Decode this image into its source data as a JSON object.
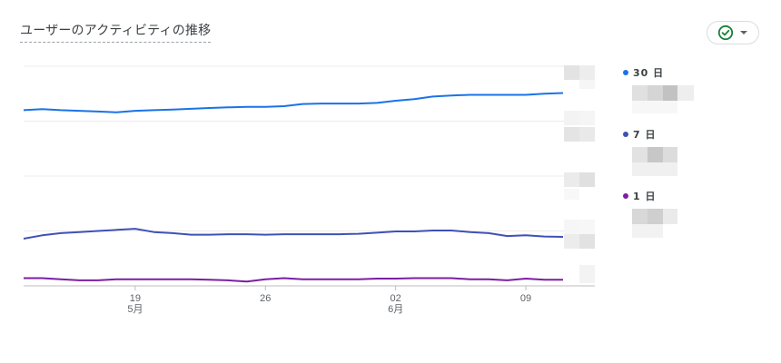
{
  "card": {
    "title": "ユーザーのアクティビティの推移"
  },
  "status_control": {
    "icon": "check-circle-icon",
    "dropdown_icon": "caret-down-icon",
    "accent": "#188038"
  },
  "chart_data": {
    "type": "line",
    "x": [
      "5/13",
      "5/14",
      "5/15",
      "5/16",
      "5/17",
      "5/18",
      "5/19",
      "5/20",
      "5/21",
      "5/22",
      "5/23",
      "5/24",
      "5/25",
      "5/26",
      "5/27",
      "5/28",
      "5/29",
      "5/30",
      "5/31",
      "6/1",
      "6/2",
      "6/3",
      "6/4",
      "6/5",
      "6/6",
      "6/7",
      "6/8",
      "6/9",
      "6/10",
      "6/11"
    ],
    "x_ticks": [
      {
        "day": "19",
        "month": "5月",
        "index": 6
      },
      {
        "day": "26",
        "month": "",
        "index": 13
      },
      {
        "day": "02",
        "month": "6月",
        "index": 20
      },
      {
        "day": "09",
        "month": "",
        "index": 27
      }
    ],
    "gridlines": 5,
    "series": [
      {
        "name": "30 日",
        "color": "#1a73e8",
        "values": [
          0.8,
          0.805,
          0.8,
          0.797,
          0.794,
          0.79,
          0.797,
          0.8,
          0.803,
          0.806,
          0.81,
          0.813,
          0.815,
          0.815,
          0.818,
          0.828,
          0.83,
          0.83,
          0.83,
          0.833,
          0.843,
          0.85,
          0.862,
          0.867,
          0.87,
          0.87,
          0.87,
          0.87,
          0.875,
          0.878
        ]
      },
      {
        "name": "7 日",
        "color": "#3f51b5",
        "values": [
          0.215,
          0.23,
          0.24,
          0.245,
          0.25,
          0.255,
          0.26,
          0.245,
          0.24,
          0.233,
          0.233,
          0.235,
          0.235,
          0.233,
          0.235,
          0.235,
          0.235,
          0.235,
          0.237,
          0.242,
          0.248,
          0.248,
          0.252,
          0.252,
          0.245,
          0.24,
          0.227,
          0.23,
          0.225,
          0.223
        ]
      },
      {
        "name": "1 日",
        "color": "#7b1fa2",
        "values": [
          0.035,
          0.035,
          0.03,
          0.025,
          0.025,
          0.03,
          0.03,
          0.03,
          0.03,
          0.03,
          0.028,
          0.025,
          0.02,
          0.03,
          0.035,
          0.03,
          0.03,
          0.03,
          0.03,
          0.033,
          0.033,
          0.035,
          0.035,
          0.035,
          0.03,
          0.03,
          0.025,
          0.033,
          0.028,
          0.028
        ]
      }
    ]
  },
  "legend": {
    "items": [
      {
        "label": "30 日",
        "color": "#1a73e8"
      },
      {
        "label": "7 日",
        "color": "#3f51b5"
      },
      {
        "label": "1 日",
        "color": "#7b1fa2"
      }
    ]
  }
}
